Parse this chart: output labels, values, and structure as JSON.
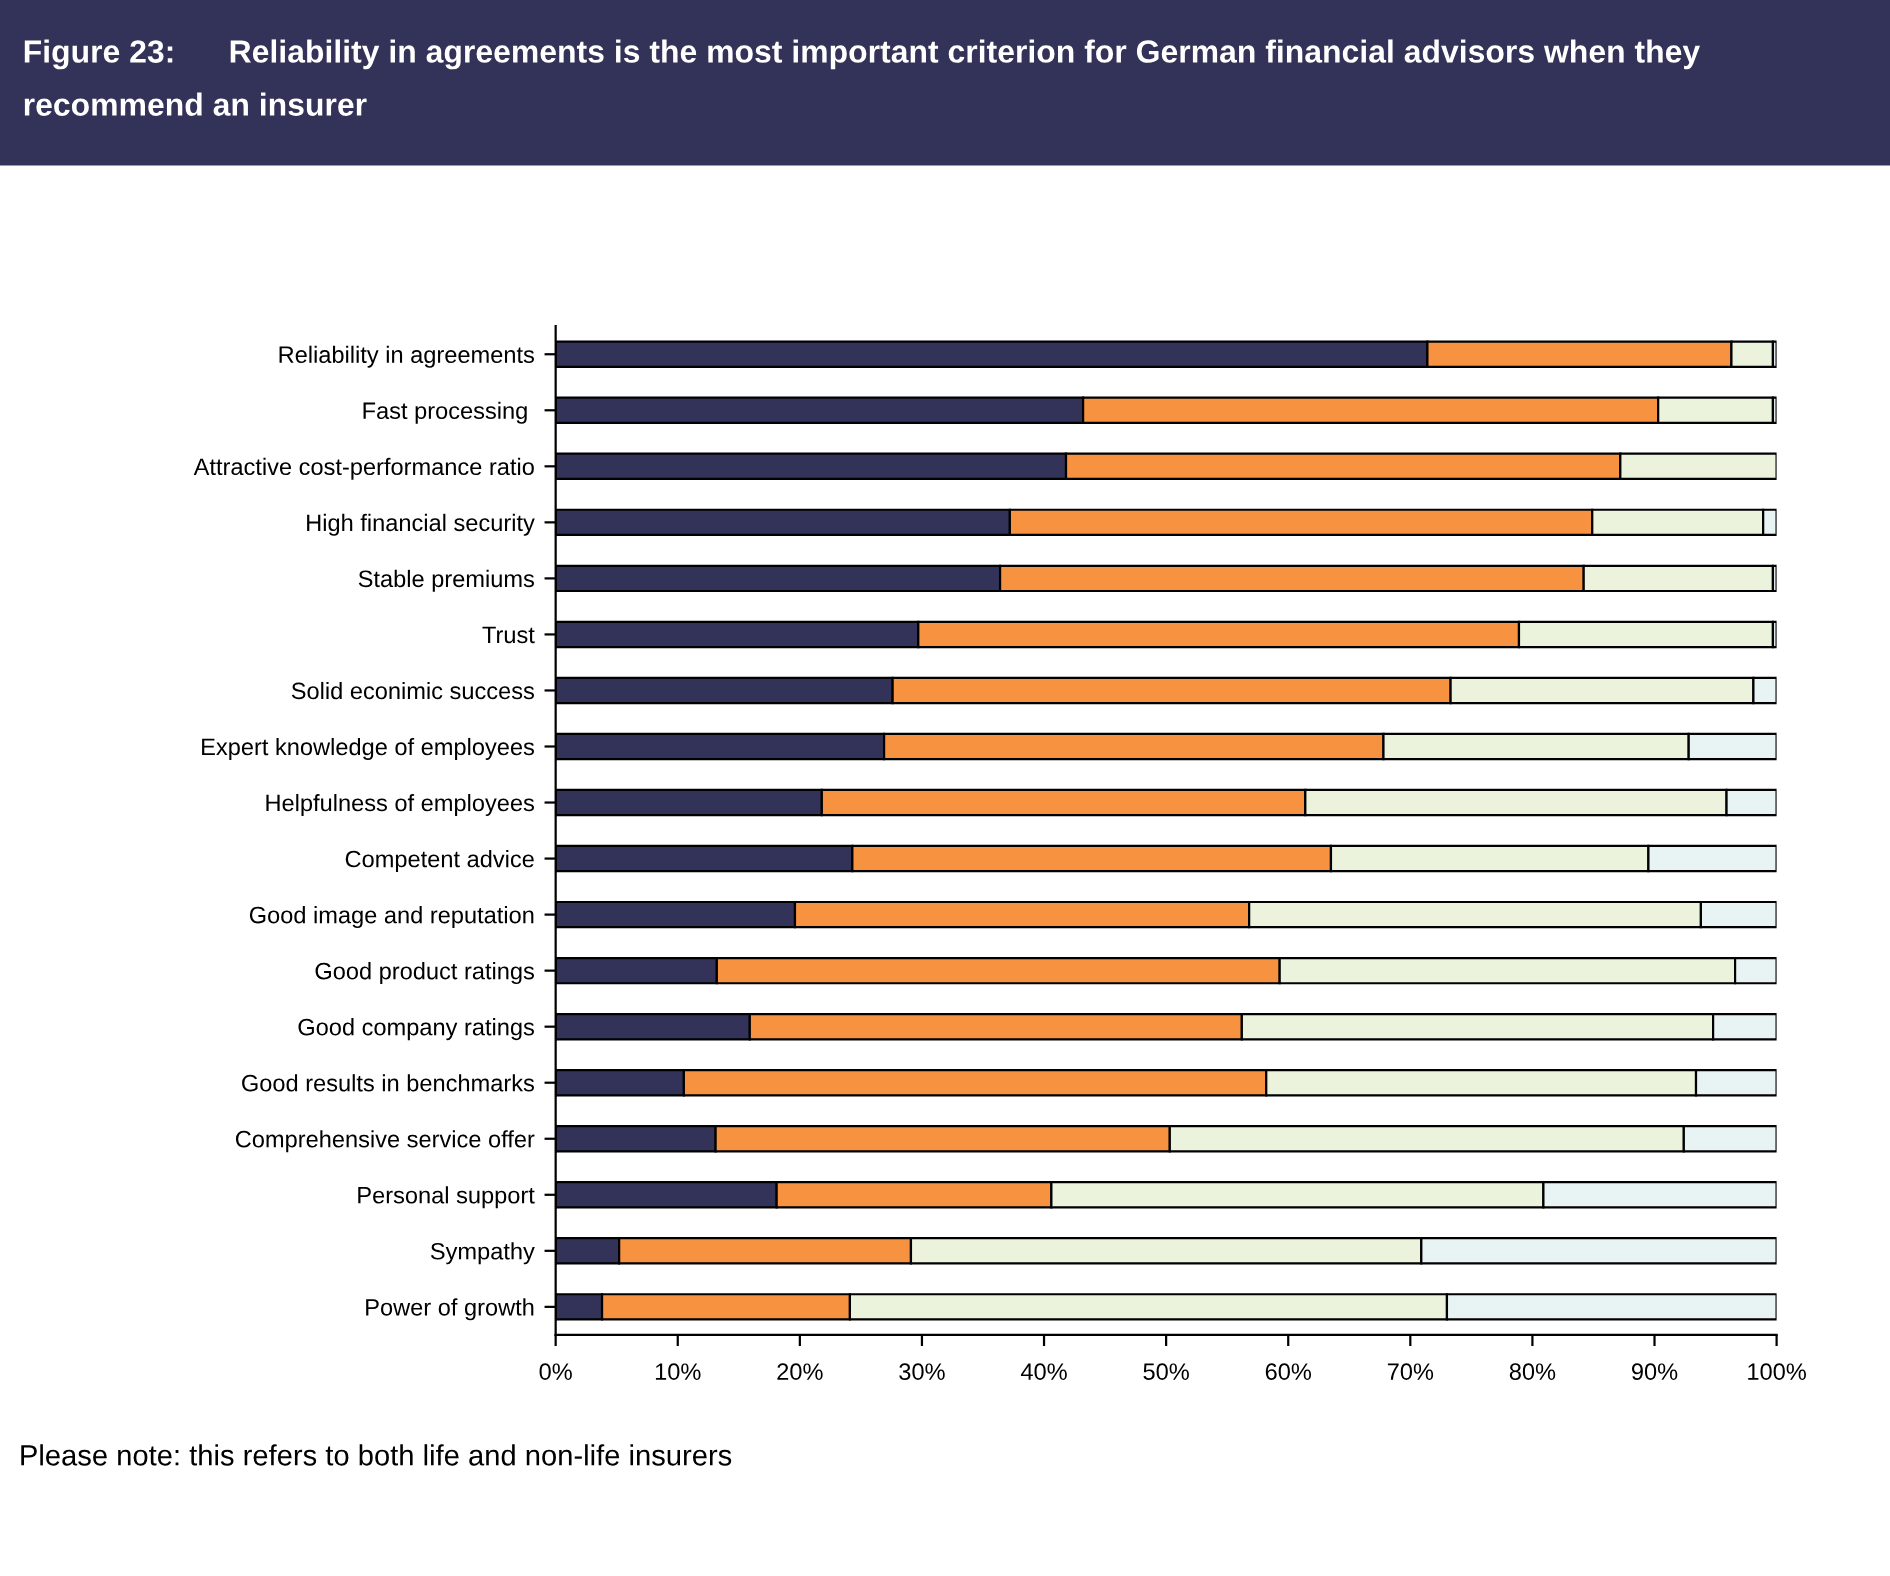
{
  "chart_data": {
    "type": "bar",
    "orientation": "horizontal",
    "stacked": true,
    "title": "Figure 23:      Reliability in agreements is the most important criterion for German financial advisors when they recommend an insurer",
    "categories": [
      "Reliability in agreements",
      "Fast processing ",
      "Attractive cost-performance ratio",
      "High financial security",
      "Stable premiums",
      "Trust",
      "Solid econimic success",
      "Expert knowledge of employees",
      "Helpfulness of employees",
      "Competent advice",
      "Good image and reputation",
      "Good product ratings",
      "Good company ratings",
      "Good results in benchmarks",
      "Comprehensive service offer",
      "Personal support",
      "Sympathy",
      "Power of growth"
    ],
    "series": [
      {
        "color": "#333359",
        "values": [
          71.4,
          43.2,
          41.8,
          37.2,
          36.4,
          29.7,
          27.6,
          26.9,
          21.8,
          24.3,
          19.6,
          13.2,
          15.9,
          10.5,
          13.1,
          18.1,
          5.2,
          3.8
        ]
      },
      {
        "color": "#f79240",
        "values": [
          24.9,
          47.1,
          45.4,
          47.7,
          47.8,
          49.2,
          45.7,
          40.9,
          39.6,
          39.2,
          37.2,
          46.1,
          40.3,
          47.7,
          37.2,
          22.5,
          23.9,
          20.3
        ]
      },
      {
        "color": "#ebf3dc",
        "values": [
          3.4,
          9.4,
          12.8,
          14.0,
          15.5,
          20.8,
          24.8,
          25.0,
          34.5,
          26.0,
          37.0,
          37.3,
          38.6,
          35.2,
          42.1,
          40.3,
          41.8,
          48.9
        ]
      },
      {
        "color": "#e8f4f4",
        "values": [
          0.3,
          0.3,
          null,
          1.1,
          0.3,
          0.3,
          1.9,
          7.2,
          4.1,
          10.5,
          6.2,
          3.4,
          5.2,
          6.6,
          7.6,
          19.1,
          29.1,
          27.0
        ]
      }
    ],
    "xlim": [
      0,
      100
    ],
    "xticks": [
      {
        "value": 0,
        "label": "0%"
      },
      {
        "value": 10,
        "label": "10%"
      },
      {
        "value": 20,
        "label": "20%"
      },
      {
        "value": 30,
        "label": "30%"
      },
      {
        "value": 40,
        "label": "40%"
      },
      {
        "value": 50,
        "label": "50%"
      },
      {
        "value": 60,
        "label": "60%"
      },
      {
        "value": 70,
        "label": "70%"
      },
      {
        "value": 80,
        "label": "80%"
      },
      {
        "value": 90,
        "label": "90%"
      },
      {
        "value": 100,
        "label": "100%"
      }
    ],
    "grid": false,
    "legend": false,
    "annotations": [
      "Please note: this refers to both life and non-life insurers"
    ]
  }
}
